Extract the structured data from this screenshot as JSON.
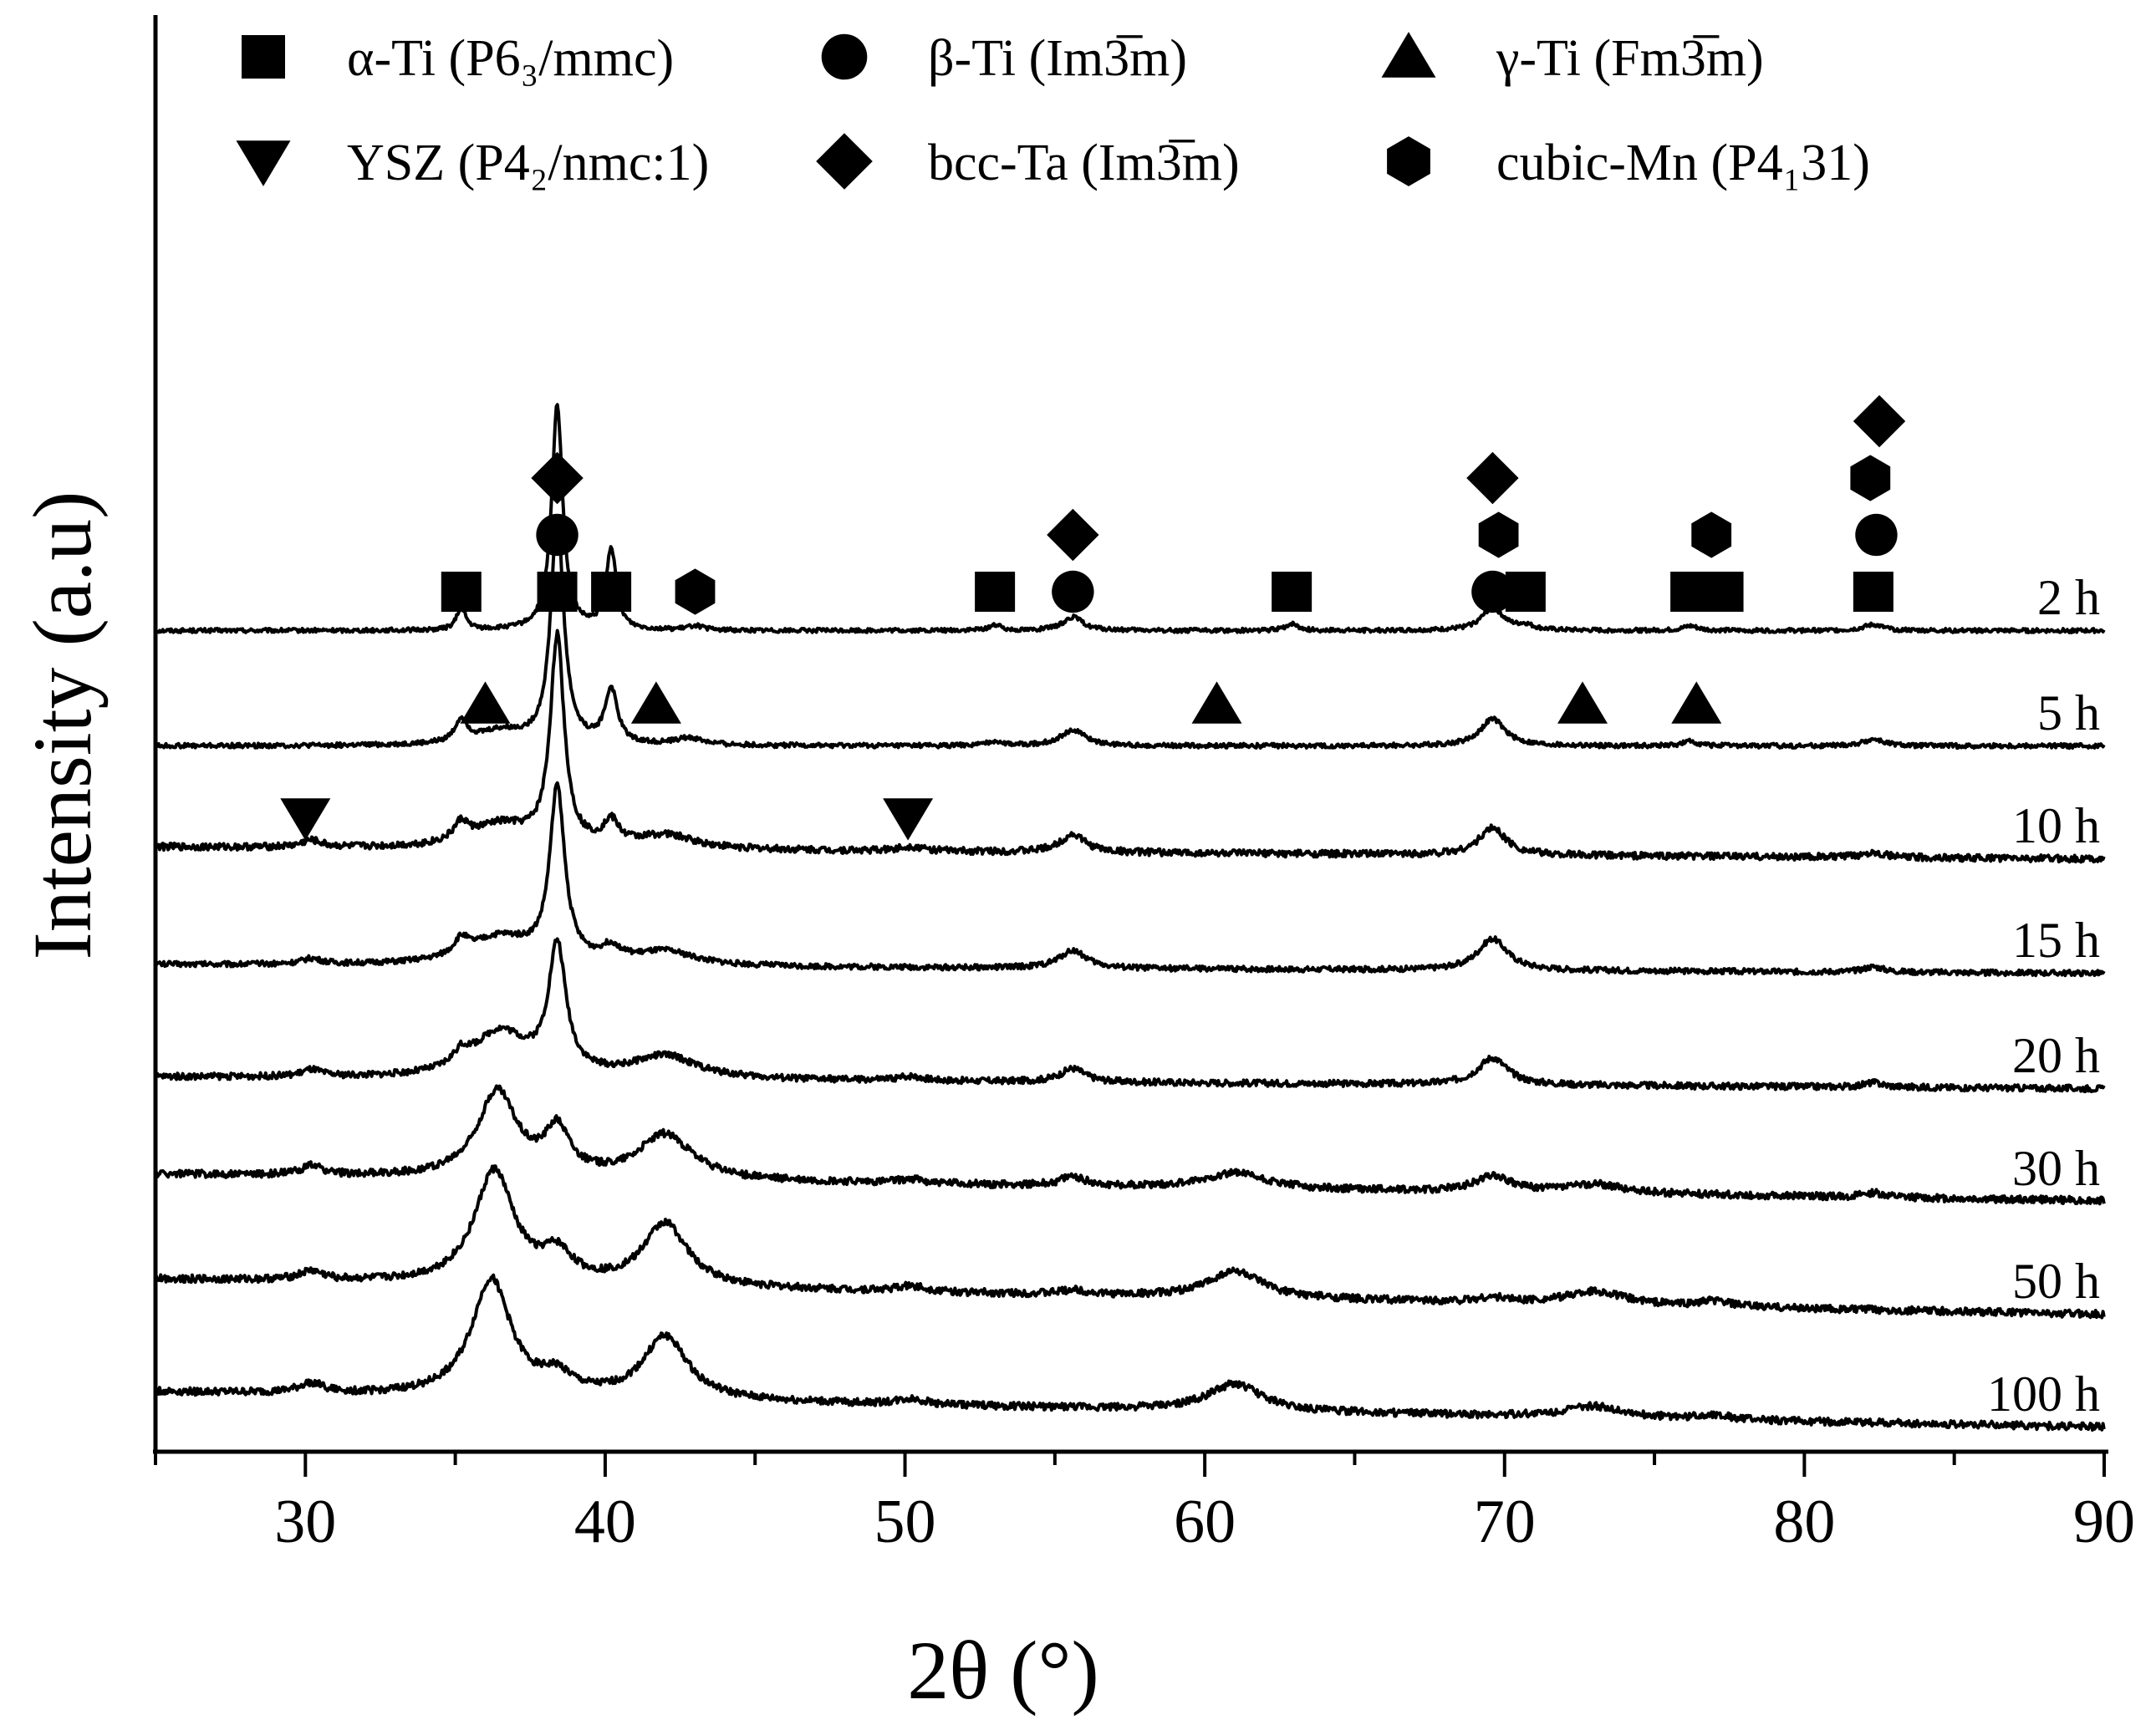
{
  "chart_data": {
    "type": "line",
    "title": "",
    "xlabel": "2θ (°)",
    "ylabel": "Intensity (a.u)",
    "xlim": [
      25,
      90
    ],
    "xticks": [
      30,
      40,
      50,
      60,
      70,
      80,
      90
    ],
    "tick_labels": [
      "30",
      "40",
      "50",
      "60",
      "70",
      "80",
      "90"
    ],
    "y_ticks": "none",
    "legend": {
      "placement": "top",
      "entries": [
        {
          "symbol": "square",
          "phase": "α-Ti",
          "space_group": "(P6₃/mmc)"
        },
        {
          "symbol": "circle",
          "phase": "β-Ti",
          "space_group": "(Im3̅m)"
        },
        {
          "symbol": "triangle-up",
          "phase": "γ-Ti",
          "space_group": "(Fm3̅m)"
        },
        {
          "symbol": "triangle-down",
          "phase": "YSZ",
          "space_group": "(P4₂/nmc:1)"
        },
        {
          "symbol": "diamond",
          "phase": "bcc-Ta",
          "space_group": "(Im3̅m)"
        },
        {
          "symbol": "hexagon",
          "phase": "cubic-Mn",
          "space_group": "(P4₁31)"
        }
      ]
    },
    "series": [
      {
        "name": "2 h",
        "baseline": 1,
        "slope": 0,
        "noise": 0.9,
        "peaks": [
          [
            35.2,
            5,
            0.18
          ],
          [
            38.4,
            50,
            0.22
          ],
          [
            40.2,
            18,
            0.2
          ],
          [
            43.0,
            1,
            0.3
          ],
          [
            53.0,
            1.2,
            0.25
          ],
          [
            55.6,
            3,
            0.4
          ],
          [
            62.9,
            1.5,
            0.25
          ],
          [
            69.6,
            5,
            0.45
          ],
          [
            70.7,
            1,
            0.3
          ],
          [
            76.2,
            1,
            0.3
          ],
          [
            82.3,
            1.3,
            0.4
          ]
        ]
      },
      {
        "name": "5 h",
        "baseline": 1,
        "slope": 0,
        "noise": 1,
        "peaks": [
          [
            35.2,
            5,
            0.25
          ],
          [
            36.5,
            3,
            1.0
          ],
          [
            38.4,
            50,
            0.26
          ],
          [
            40.2,
            12,
            0.25
          ],
          [
            42.8,
            1.5,
            0.6
          ],
          [
            53.0,
            1,
            0.3
          ],
          [
            55.6,
            3.5,
            0.5
          ],
          [
            69.6,
            6,
            0.5
          ],
          [
            76.2,
            1,
            0.3
          ],
          [
            82.3,
            1.5,
            0.4
          ]
        ]
      },
      {
        "name": "10 h",
        "baseline": 1,
        "slope": 0.04,
        "noise": 1.5,
        "peaks": [
          [
            30.2,
            1.5,
            0.4
          ],
          [
            35.2,
            4,
            0.3
          ],
          [
            36.5,
            5,
            1.2
          ],
          [
            38.4,
            46,
            0.28
          ],
          [
            40.2,
            5,
            0.3
          ],
          [
            42.0,
            3,
            1.2
          ],
          [
            50.2,
            1,
            0.5
          ],
          [
            55.6,
            4,
            0.5
          ],
          [
            69.6,
            6,
            0.55
          ],
          [
            82.3,
            1.2,
            0.4
          ]
        ]
      },
      {
        "name": "15 h",
        "baseline": 1,
        "slope": 0.03,
        "noise": 1.2,
        "peaks": [
          [
            30.2,
            1.2,
            0.4
          ],
          [
            35.2,
            3.5,
            0.3
          ],
          [
            36.5,
            6,
            1.3
          ],
          [
            38.4,
            38,
            0.3
          ],
          [
            40.2,
            3,
            0.4
          ],
          [
            42.0,
            3,
            1.2
          ],
          [
            55.6,
            4,
            0.55
          ],
          [
            69.6,
            7,
            0.6
          ],
          [
            82.3,
            1.2,
            0.4
          ]
        ]
      },
      {
        "name": "20 h",
        "baseline": 1,
        "slope": 0.04,
        "noise": 1.4,
        "peaks": [
          [
            30.2,
            1.5,
            0.4
          ],
          [
            35.2,
            3,
            0.35
          ],
          [
            36.5,
            10,
            1.1
          ],
          [
            38.4,
            28,
            0.35
          ],
          [
            42.0,
            5,
            1.3
          ],
          [
            50.2,
            1,
            0.5
          ],
          [
            55.6,
            3,
            0.5
          ],
          [
            69.6,
            6,
            0.6
          ],
          [
            82.3,
            1,
            0.4
          ]
        ]
      },
      {
        "name": "30 h",
        "baseline": 1,
        "slope": 0.09,
        "noise": 1.6,
        "peaks": [
          [
            30.2,
            2,
            0.45
          ],
          [
            36.4,
            19,
            0.8
          ],
          [
            38.4,
            10,
            0.5
          ],
          [
            42.0,
            10,
            1.1
          ],
          [
            50.2,
            1,
            0.5
          ],
          [
            55.6,
            2,
            0.5
          ],
          [
            61.0,
            3.5,
            1.2
          ],
          [
            69.6,
            3.5,
            0.7
          ],
          [
            73.0,
            2,
            1.2
          ],
          [
            82.3,
            1,
            0.4
          ]
        ]
      },
      {
        "name": "50 h",
        "baseline": 1,
        "slope": 0.12,
        "noise": 1.6,
        "peaks": [
          [
            30.2,
            2,
            0.5
          ],
          [
            36.3,
            25,
            0.8
          ],
          [
            38.4,
            6,
            0.6
          ],
          [
            42.0,
            14,
            0.9
          ],
          [
            50.2,
            1.2,
            0.6
          ],
          [
            55.6,
            1,
            0.5
          ],
          [
            61.0,
            6,
            1.1
          ],
          [
            69.6,
            1,
            0.6
          ],
          [
            73.0,
            3,
            1.2
          ],
          [
            77.0,
            1.2,
            0.6
          ]
        ]
      },
      {
        "name": "100 h",
        "baseline": 1,
        "slope": 0.12,
        "noise": 1.6,
        "peaks": [
          [
            30.2,
            2.2,
            0.5
          ],
          [
            36.2,
            26,
            0.8
          ],
          [
            38.4,
            4,
            0.6
          ],
          [
            42.0,
            14,
            0.9
          ],
          [
            50.2,
            1.2,
            0.6
          ],
          [
            61.0,
            6,
            1.1
          ],
          [
            73.0,
            2.5,
            1.2
          ],
          [
            77.0,
            1,
            0.6
          ]
        ]
      }
    ],
    "phase_markers": [
      {
        "symbol": "square",
        "x": 35.2,
        "trace": "2 h",
        "level": 1
      },
      {
        "symbol": "square",
        "x": 38.4,
        "trace": "2 h",
        "level": 1
      },
      {
        "symbol": "circle",
        "x": 38.4,
        "trace": "2 h",
        "level": 2
      },
      {
        "symbol": "diamond",
        "x": 38.4,
        "trace": "2 h",
        "level": 3
      },
      {
        "symbol": "square",
        "x": 40.2,
        "trace": "2 h",
        "level": 1
      },
      {
        "symbol": "hexagon",
        "x": 43.0,
        "trace": "2 h",
        "level": 1
      },
      {
        "symbol": "square",
        "x": 53.0,
        "trace": "2 h",
        "level": 1
      },
      {
        "symbol": "circle",
        "x": 55.6,
        "trace": "2 h",
        "level": 1
      },
      {
        "symbol": "diamond",
        "x": 55.6,
        "trace": "2 h",
        "level": 2
      },
      {
        "symbol": "square",
        "x": 62.9,
        "trace": "2 h",
        "level": 1
      },
      {
        "symbol": "circle",
        "x": 69.6,
        "trace": "2 h",
        "level": 1
      },
      {
        "symbol": "hexagon",
        "x": 69.8,
        "trace": "2 h",
        "level": 2
      },
      {
        "symbol": "diamond",
        "x": 69.6,
        "trace": "2 h",
        "level": 3
      },
      {
        "symbol": "square",
        "x": 70.7,
        "trace": "2 h",
        "level": 1
      },
      {
        "symbol": "square",
        "x": 76.2,
        "trace": "2 h",
        "level": 1
      },
      {
        "symbol": "square",
        "x": 77.3,
        "trace": "2 h",
        "level": 1
      },
      {
        "symbol": "hexagon",
        "x": 76.9,
        "trace": "2 h",
        "level": 2
      },
      {
        "symbol": "square",
        "x": 82.3,
        "trace": "2 h",
        "level": 1
      },
      {
        "symbol": "circle",
        "x": 82.4,
        "trace": "2 h",
        "level": 2
      },
      {
        "symbol": "hexagon",
        "x": 82.2,
        "trace": "2 h",
        "level": 3
      },
      {
        "symbol": "diamond",
        "x": 82.5,
        "trace": "2 h",
        "level": 4
      },
      {
        "symbol": "triangle-up",
        "x": 36.0,
        "trace": "5 h",
        "level": 1
      },
      {
        "symbol": "triangle-up",
        "x": 41.7,
        "trace": "5 h",
        "level": 1
      },
      {
        "symbol": "triangle-up",
        "x": 60.4,
        "trace": "5 h",
        "level": 1
      },
      {
        "symbol": "triangle-up",
        "x": 72.6,
        "trace": "5 h",
        "level": 1
      },
      {
        "symbol": "triangle-up",
        "x": 76.4,
        "trace": "5 h",
        "level": 1
      },
      {
        "symbol": "triangle-down",
        "x": 30.0,
        "trace": "10 h",
        "level": 1
      },
      {
        "symbol": "triangle-down",
        "x": 50.1,
        "trace": "10 h",
        "level": 1
      }
    ]
  }
}
